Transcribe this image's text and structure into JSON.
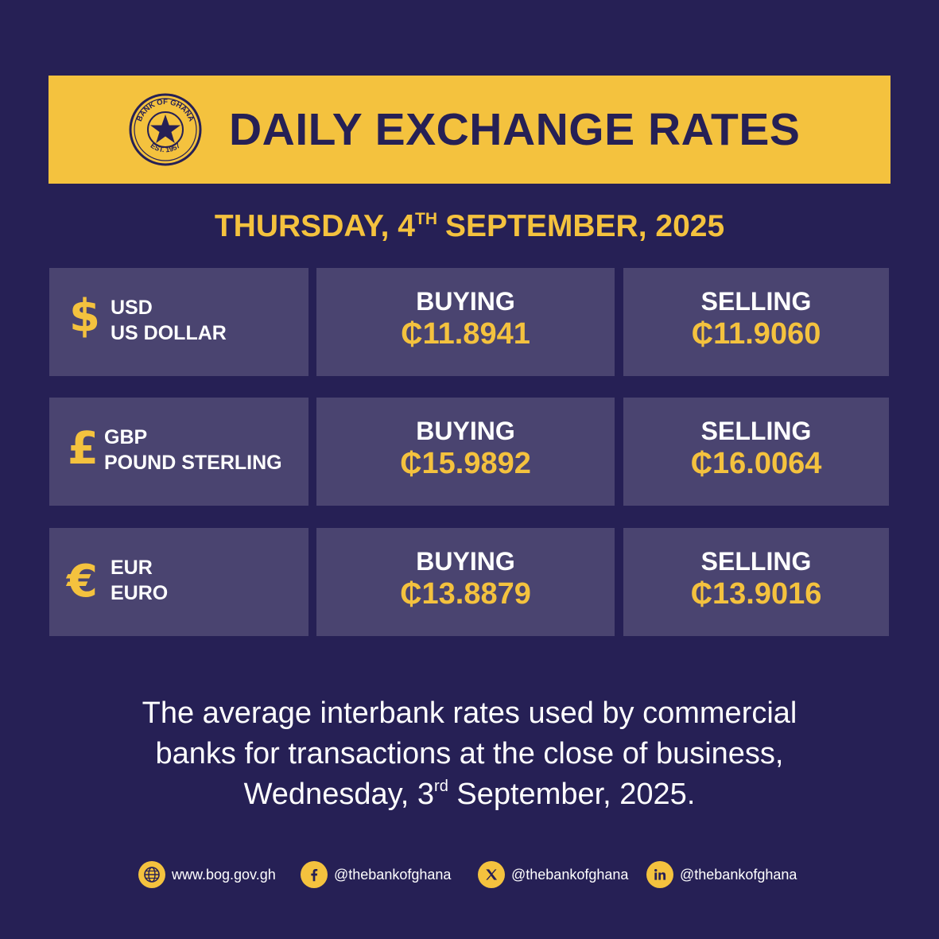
{
  "header": {
    "seal_text_top": "BANK OF GHANA",
    "seal_text_bottom": "EST. 1957",
    "title": "DAILY EXCHANGE RATES"
  },
  "date": {
    "prefix": "THURSDAY, 4",
    "suffix": "TH",
    "rest": "SEPTEMBER, 2025"
  },
  "rates": [
    {
      "symbol": "$",
      "code": "USD",
      "name": "US DOLLAR",
      "buying_label": "BUYING",
      "buying": "₵11.8941",
      "selling_label": "SELLING",
      "selling": "₵11.9060"
    },
    {
      "symbol": "£",
      "code": "GBP",
      "name": "POUND STERLING",
      "buying_label": "BUYING",
      "buying": "₵15.9892",
      "selling_label": "SELLING",
      "selling": "₵16.0064"
    },
    {
      "symbol": "€",
      "code": "EUR",
      "name": "EURO",
      "buying_label": "BUYING",
      "buying": "₵13.8879",
      "selling_label": "SELLING",
      "selling": "₵13.9016"
    }
  ],
  "note": {
    "line1": "The average interbank rates used by commercial",
    "line2": "banks for transactions at the close of business,",
    "line3_prefix": "Wednesday, 3",
    "line3_sup": "rd",
    "line3_rest": " September, 2025."
  },
  "footer": [
    {
      "icon": "globe-icon",
      "text": "www.bog.gov.gh"
    },
    {
      "icon": "facebook-icon",
      "text": "@thebankofghana"
    },
    {
      "icon": "x-icon",
      "text": "@thebankofghana"
    },
    {
      "icon": "linkedin-icon",
      "text": "@thebankofghana"
    }
  ],
  "colors": {
    "background": "#262055",
    "accent": "#F4C23E",
    "cell": "#4A4470",
    "text": "#FFFFFF"
  }
}
